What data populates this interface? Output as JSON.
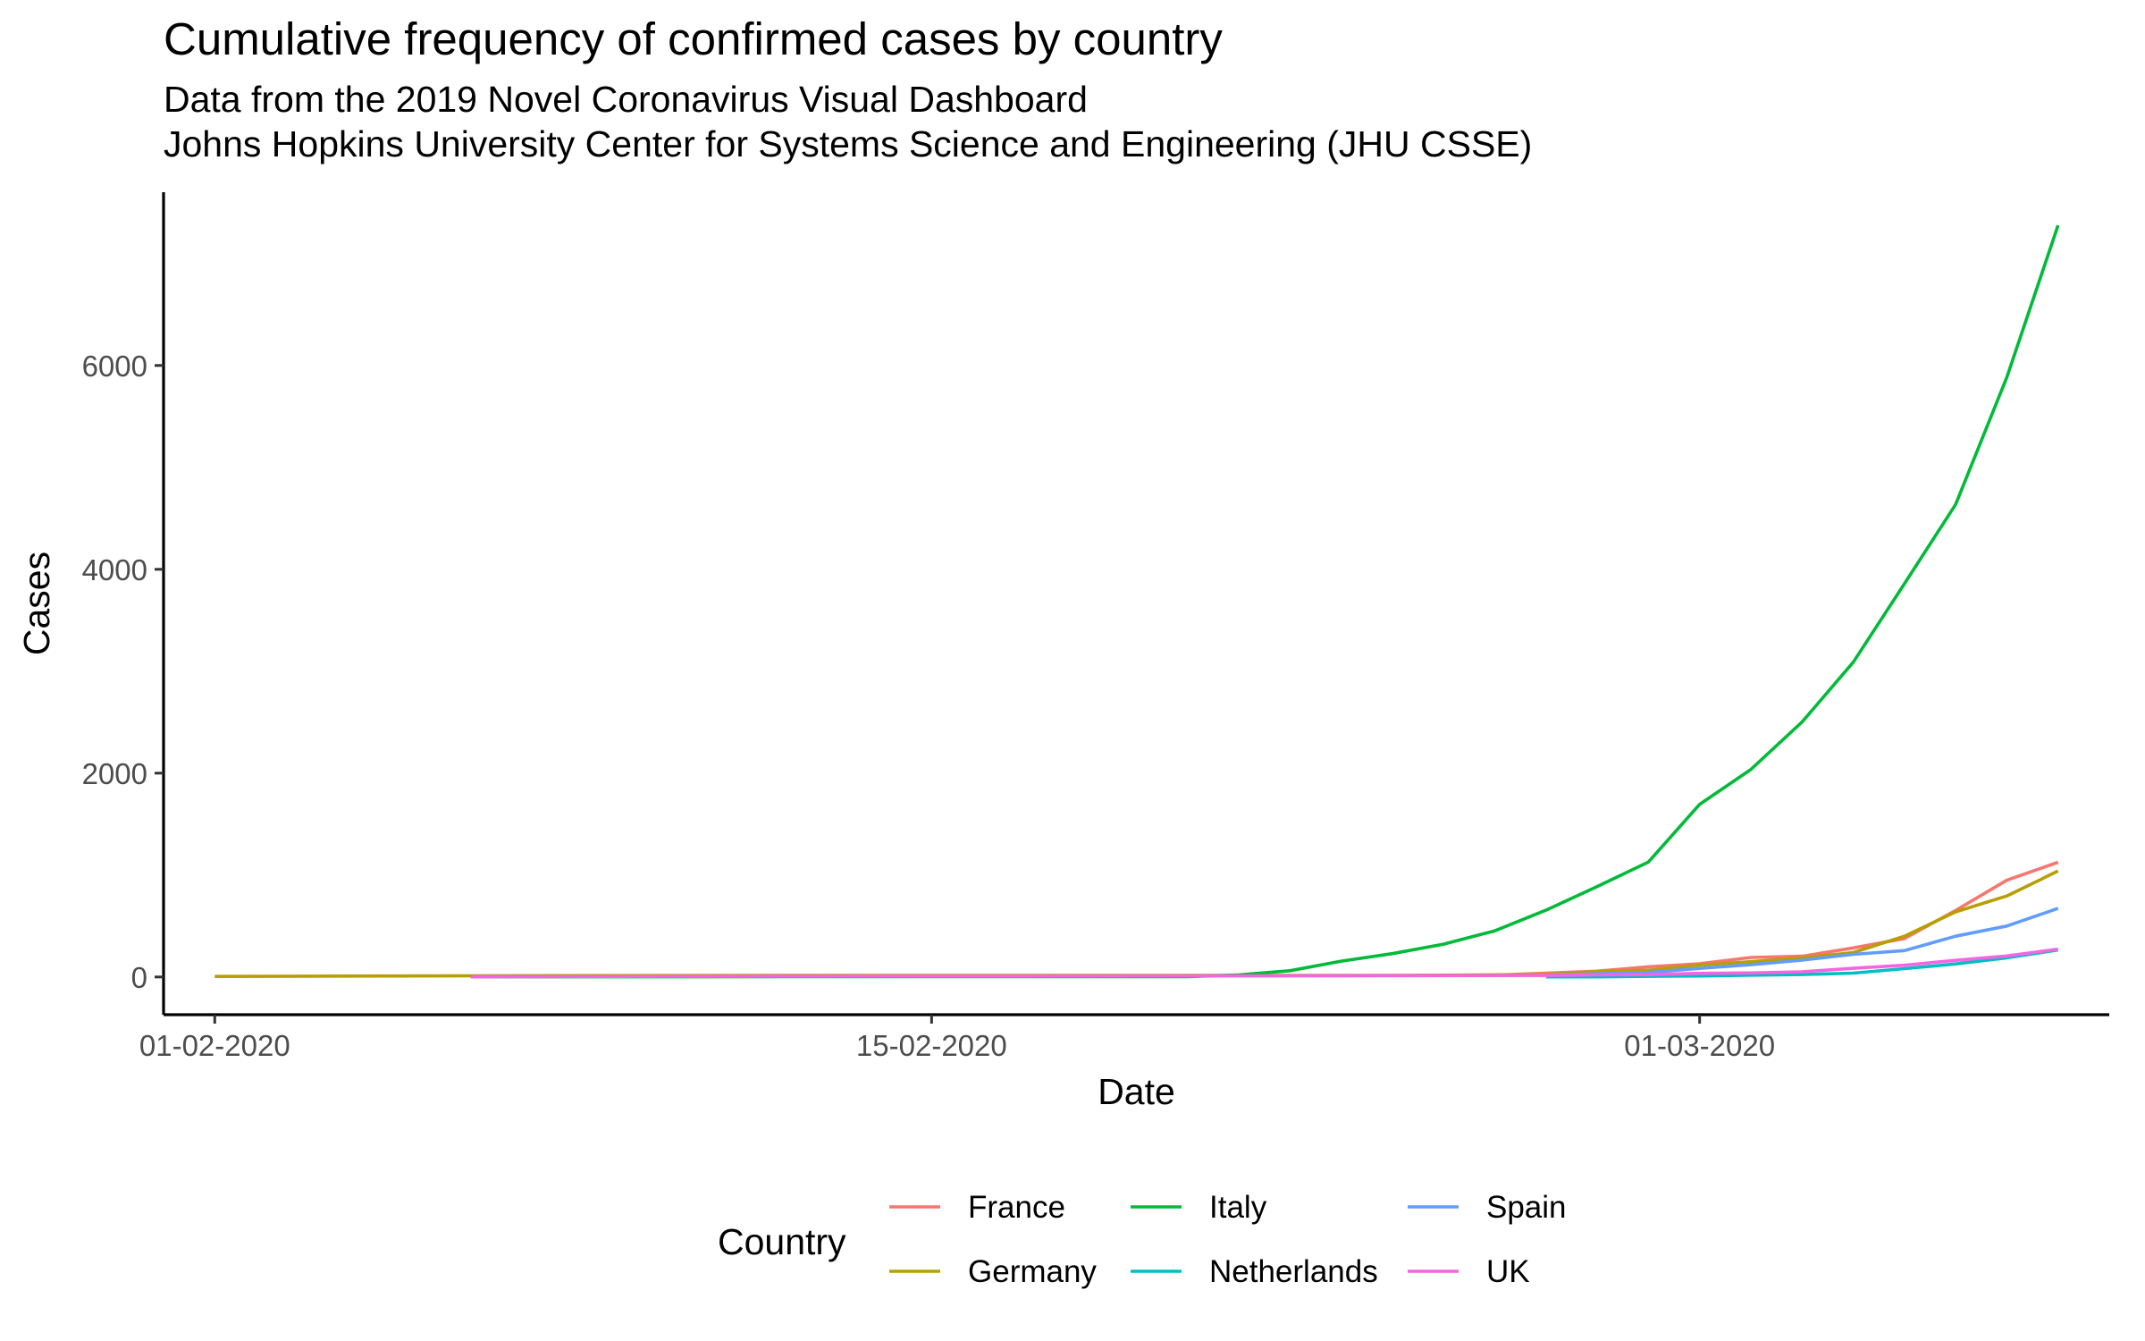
{
  "chart_data": {
    "type": "line",
    "title": "Cumulative frequency of confirmed cases by country",
    "subtitle": [
      "Data from the 2019 Novel Coronavirus Visual Dashboard",
      "Johns Hopkins University Center for Systems Science and Engineering (JHU CSSE)"
    ],
    "xlabel": "Date",
    "ylabel": "Cases",
    "x_axis": {
      "range": [
        "2020-01-31",
        "2020-03-09"
      ],
      "ticks": [
        {
          "date": "2020-02-01",
          "label": "01-02-2020"
        },
        {
          "date": "2020-02-15",
          "label": "15-02-2020"
        },
        {
          "date": "2020-03-01",
          "label": "01-03-2020"
        }
      ]
    },
    "y_axis": {
      "range": [
        -370,
        7700
      ],
      "ticks": [
        0,
        2000,
        4000,
        6000
      ],
      "tick_labels": [
        "0",
        "2000",
        "4000",
        "6000"
      ]
    },
    "grid": false,
    "legend": {
      "title": "Country",
      "position": "bottom",
      "columns": 3
    },
    "series": [
      {
        "name": "France",
        "color": "#F8766D",
        "points": [
          [
            "2020-02-06",
            6
          ],
          [
            "2020-02-12",
            11
          ],
          [
            "2020-02-17",
            12
          ],
          [
            "2020-02-22",
            12
          ],
          [
            "2020-02-25",
            14
          ],
          [
            "2020-02-26",
            18
          ],
          [
            "2020-02-27",
            38
          ],
          [
            "2020-02-28",
            57
          ],
          [
            "2020-02-29",
            100
          ],
          [
            "2020-03-01",
            130
          ],
          [
            "2020-03-02",
            191
          ],
          [
            "2020-03-03",
            204
          ],
          [
            "2020-03-04",
            285
          ],
          [
            "2020-03-05",
            377
          ],
          [
            "2020-03-06",
            653
          ],
          [
            "2020-03-07",
            949
          ],
          [
            "2020-03-08",
            1126
          ]
        ]
      },
      {
        "name": "Germany",
        "color": "#B79F00",
        "points": [
          [
            "2020-02-01",
            5
          ],
          [
            "2020-02-06",
            12
          ],
          [
            "2020-02-12",
            16
          ],
          [
            "2020-02-17",
            16
          ],
          [
            "2020-02-24",
            16
          ],
          [
            "2020-02-25",
            18
          ],
          [
            "2020-02-26",
            21
          ],
          [
            "2020-02-27",
            26
          ],
          [
            "2020-02-28",
            53
          ],
          [
            "2020-02-29",
            66
          ],
          [
            "2020-03-01",
            117
          ],
          [
            "2020-03-02",
            150
          ],
          [
            "2020-03-03",
            188
          ],
          [
            "2020-03-04",
            240
          ],
          [
            "2020-03-05",
            400
          ],
          [
            "2020-03-06",
            639
          ],
          [
            "2020-03-07",
            795
          ],
          [
            "2020-03-08",
            1040
          ]
        ]
      },
      {
        "name": "Italy",
        "color": "#00BA38",
        "points": [
          [
            "2020-02-06",
            2
          ],
          [
            "2020-02-12",
            3
          ],
          [
            "2020-02-17",
            3
          ],
          [
            "2020-02-20",
            3
          ],
          [
            "2020-02-21",
            20
          ],
          [
            "2020-02-22",
            62
          ],
          [
            "2020-02-23",
            155
          ],
          [
            "2020-02-24",
            229
          ],
          [
            "2020-02-25",
            322
          ],
          [
            "2020-02-26",
            453
          ],
          [
            "2020-02-27",
            655
          ],
          [
            "2020-02-28",
            888
          ],
          [
            "2020-02-29",
            1128
          ],
          [
            "2020-03-01",
            1694
          ],
          [
            "2020-03-02",
            2036
          ],
          [
            "2020-03-03",
            2502
          ],
          [
            "2020-03-04",
            3089
          ],
          [
            "2020-03-05",
            3858
          ],
          [
            "2020-03-06",
            4636
          ],
          [
            "2020-03-07",
            5883
          ],
          [
            "2020-03-08",
            7375
          ]
        ]
      },
      {
        "name": "Netherlands",
        "color": "#00BFC4",
        "points": [
          [
            "2020-02-27",
            1
          ],
          [
            "2020-02-28",
            1
          ],
          [
            "2020-02-29",
            6
          ],
          [
            "2020-03-01",
            10
          ],
          [
            "2020-03-02",
            18
          ],
          [
            "2020-03-03",
            24
          ],
          [
            "2020-03-04",
            38
          ],
          [
            "2020-03-05",
            82
          ],
          [
            "2020-03-06",
            128
          ],
          [
            "2020-03-07",
            188
          ],
          [
            "2020-03-08",
            265
          ]
        ]
      },
      {
        "name": "Spain",
        "color": "#619CFF",
        "points": [
          [
            "2020-02-27",
            15
          ],
          [
            "2020-02-28",
            32
          ],
          [
            "2020-02-29",
            45
          ],
          [
            "2020-03-01",
            84
          ],
          [
            "2020-03-02",
            120
          ],
          [
            "2020-03-03",
            165
          ],
          [
            "2020-03-04",
            222
          ],
          [
            "2020-03-05",
            259
          ],
          [
            "2020-03-06",
            400
          ],
          [
            "2020-03-07",
            500
          ],
          [
            "2020-03-08",
            673
          ]
        ]
      },
      {
        "name": "UK",
        "color": "#F564E3",
        "points": [
          [
            "2020-02-06",
            2
          ],
          [
            "2020-02-12",
            8
          ],
          [
            "2020-02-17",
            9
          ],
          [
            "2020-02-24",
            13
          ],
          [
            "2020-02-27",
            15
          ],
          [
            "2020-02-28",
            20
          ],
          [
            "2020-02-29",
            23
          ],
          [
            "2020-03-01",
            36
          ],
          [
            "2020-03-02",
            40
          ],
          [
            "2020-03-03",
            51
          ],
          [
            "2020-03-04",
            85
          ],
          [
            "2020-03-05",
            115
          ],
          [
            "2020-03-06",
            163
          ],
          [
            "2020-03-07",
            206
          ],
          [
            "2020-03-08",
            273
          ]
        ]
      }
    ]
  }
}
